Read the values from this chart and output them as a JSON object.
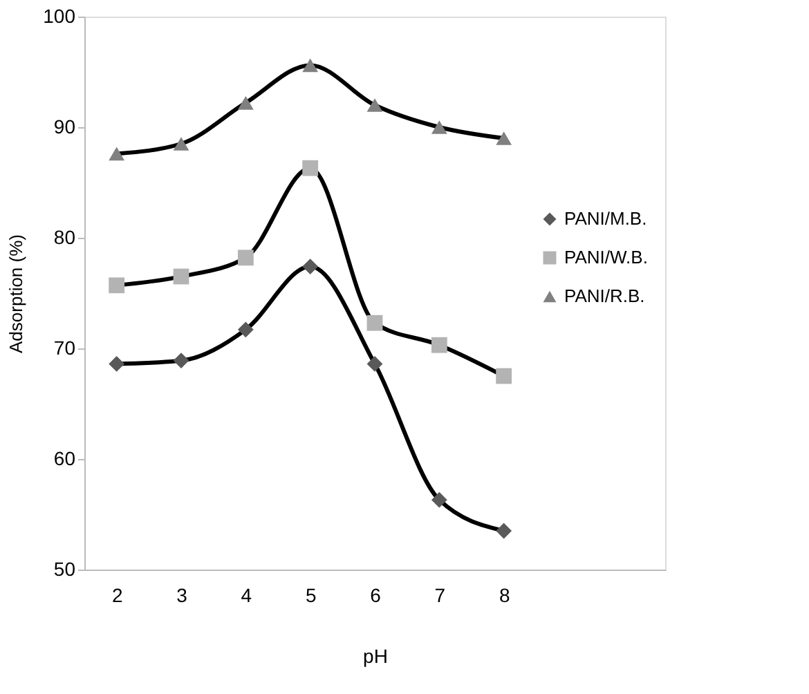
{
  "chart_data": {
    "type": "line",
    "xlabel": "pH",
    "ylabel": "Adsorption (%)",
    "categories": [
      "2",
      "3",
      "4",
      "5",
      "6",
      "7",
      "8"
    ],
    "series": [
      {
        "name": "PANI/M.B.",
        "color": "#595959",
        "marker": "diamond",
        "values": [
          68.6,
          68.9,
          71.7,
          77.4,
          68.6,
          56.3,
          53.5
        ]
      },
      {
        "name": "PANI/W.B.",
        "color": "#b3b3b3",
        "marker": "square",
        "values": [
          75.7,
          76.5,
          78.2,
          86.3,
          72.3,
          70.3,
          67.5
        ]
      },
      {
        "name": "PANI/R.B.",
        "color": "#808080",
        "marker": "triangle",
        "values": [
          87.6,
          88.5,
          92.2,
          95.6,
          92.0,
          90.0,
          89.0
        ]
      }
    ],
    "ylim": [
      50,
      100
    ],
    "yticks": [
      50,
      60,
      70,
      80,
      90,
      100
    ],
    "grid": false,
    "legend": "right",
    "line_style": "solid"
  }
}
